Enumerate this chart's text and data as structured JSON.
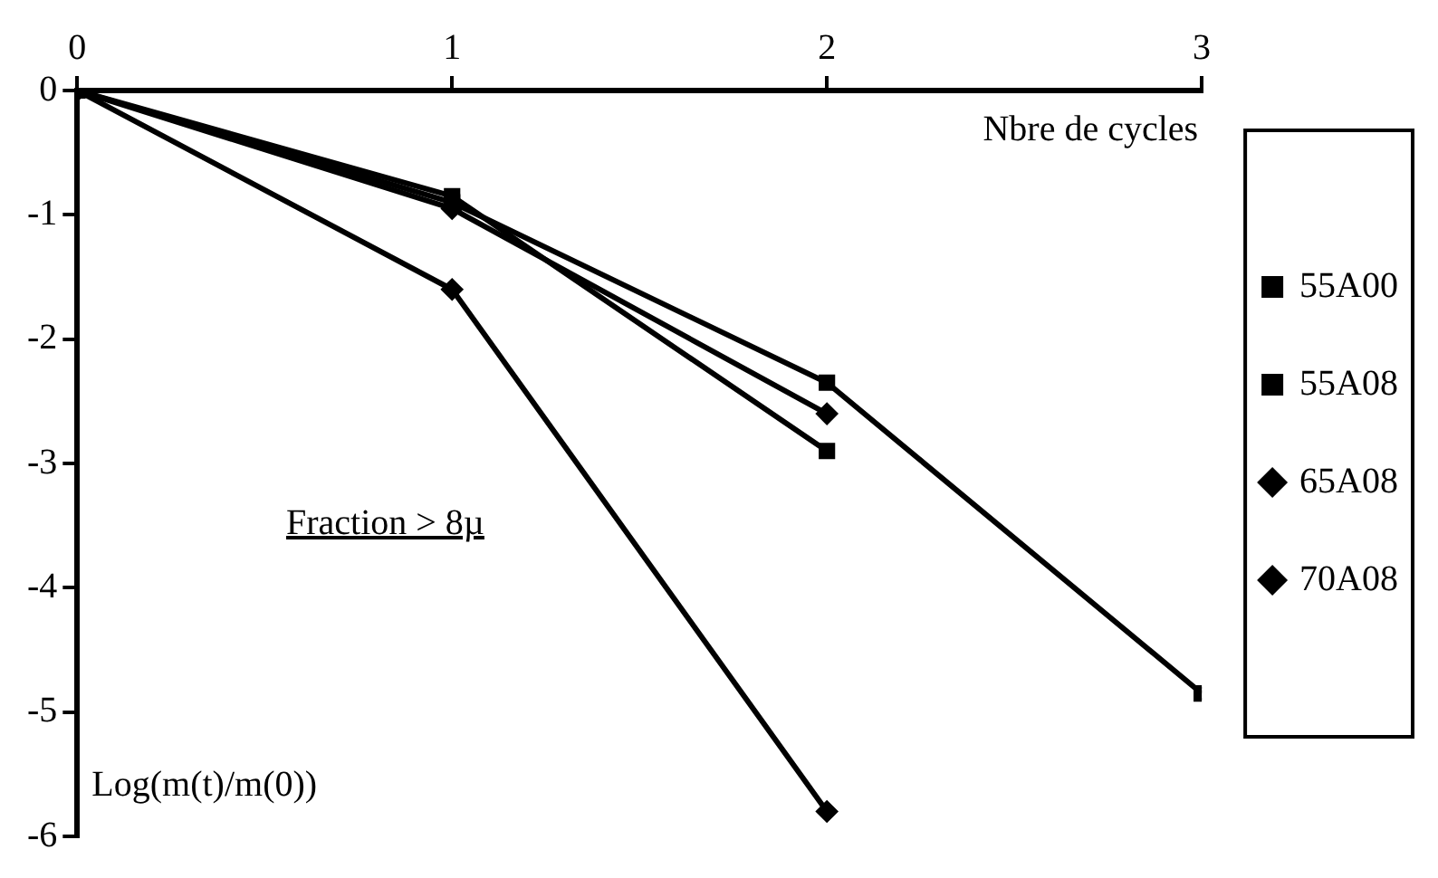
{
  "chart_data": {
    "type": "line",
    "xlabel": "Nbre de cycles",
    "ylabel": "Log(m(t)/m(0))",
    "annotations": [
      "Fraction > 8µ"
    ],
    "x": [
      0,
      1,
      2,
      3
    ],
    "xlim": [
      0,
      3
    ],
    "xticks": [
      0,
      1,
      2,
      3
    ],
    "ylim": [
      -6,
      0
    ],
    "yticks": [
      0,
      -1,
      -2,
      -3,
      -4,
      -5,
      -6
    ],
    "grid": false,
    "legend": "right",
    "line_style": "solid",
    "series": [
      {
        "name": "55A00",
        "color": "#000000",
        "marker": "square",
        "values": [
          0,
          -0.9,
          -2.35,
          -4.85
        ]
      },
      {
        "name": "55A08",
        "color": "#000000",
        "marker": "square",
        "values": [
          0,
          -0.85,
          -2.9,
          null
        ]
      },
      {
        "name": "65A08",
        "color": "#000000",
        "marker": "diamond",
        "values": [
          0,
          -0.95,
          -2.6,
          null
        ]
      },
      {
        "name": "70A08",
        "color": "#000000",
        "marker": "diamond",
        "values": [
          0,
          -1.6,
          -5.8,
          null
        ]
      }
    ]
  }
}
